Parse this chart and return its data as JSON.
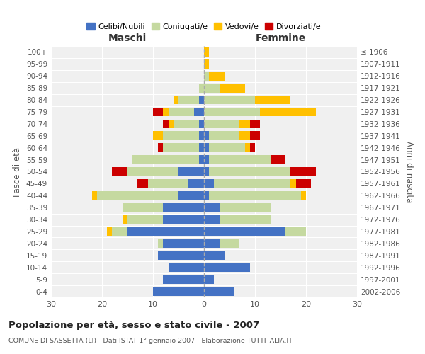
{
  "age_groups": [
    "0-4",
    "5-9",
    "10-14",
    "15-19",
    "20-24",
    "25-29",
    "30-34",
    "35-39",
    "40-44",
    "45-49",
    "50-54",
    "55-59",
    "60-64",
    "65-69",
    "70-74",
    "75-79",
    "80-84",
    "85-89",
    "90-94",
    "95-99",
    "100+"
  ],
  "birth_years": [
    "2002-2006",
    "1997-2001",
    "1992-1996",
    "1987-1991",
    "1982-1986",
    "1977-1981",
    "1972-1976",
    "1967-1971",
    "1962-1966",
    "1957-1961",
    "1952-1956",
    "1947-1951",
    "1942-1946",
    "1937-1941",
    "1932-1936",
    "1927-1931",
    "1922-1926",
    "1917-1921",
    "1912-1916",
    "1907-1911",
    "≤ 1906"
  ],
  "male": {
    "celibe": [
      10,
      8,
      7,
      9,
      8,
      15,
      8,
      8,
      5,
      3,
      5,
      1,
      1,
      1,
      1,
      2,
      1,
      0,
      0,
      0,
      0
    ],
    "coniugato": [
      0,
      0,
      0,
      0,
      1,
      3,
      7,
      8,
      16,
      8,
      10,
      13,
      7,
      7,
      5,
      5,
      4,
      1,
      0,
      0,
      0
    ],
    "vedovo": [
      0,
      0,
      0,
      0,
      0,
      1,
      1,
      0,
      1,
      0,
      0,
      0,
      0,
      2,
      1,
      1,
      1,
      0,
      0,
      0,
      0
    ],
    "divorziato": [
      0,
      0,
      0,
      0,
      0,
      0,
      0,
      0,
      0,
      2,
      3,
      0,
      1,
      0,
      1,
      2,
      0,
      0,
      0,
      0,
      0
    ]
  },
  "female": {
    "nubile": [
      6,
      2,
      9,
      4,
      3,
      16,
      3,
      3,
      1,
      2,
      1,
      1,
      1,
      1,
      0,
      0,
      0,
      0,
      0,
      0,
      0
    ],
    "coniugata": [
      0,
      0,
      0,
      0,
      4,
      4,
      10,
      10,
      18,
      15,
      16,
      12,
      7,
      6,
      7,
      11,
      10,
      3,
      1,
      0,
      0
    ],
    "vedova": [
      0,
      0,
      0,
      0,
      0,
      0,
      0,
      0,
      1,
      1,
      0,
      0,
      1,
      2,
      2,
      11,
      7,
      5,
      3,
      1,
      1
    ],
    "divorziata": [
      0,
      0,
      0,
      0,
      0,
      0,
      0,
      0,
      0,
      3,
      5,
      3,
      1,
      2,
      2,
      0,
      0,
      0,
      0,
      0,
      0
    ]
  },
  "colors": {
    "celibe": "#4472c4",
    "coniugato": "#c5d9a0",
    "vedovo": "#ffc000",
    "divorziato": "#cc0000"
  },
  "xlim": 30,
  "title": "Popolazione per età, sesso e stato civile - 2007",
  "subtitle": "COMUNE DI SASSETTA (LI) - Dati ISTAT 1° gennaio 2007 - Elaborazione TUTTITALIA.IT",
  "xlabel_left": "Maschi",
  "xlabel_right": "Femmine",
  "ylabel_left": "Fasce di età",
  "ylabel_right": "Anni di nascita",
  "legend_labels": [
    "Celibi/Nubili",
    "Coniugati/e",
    "Vedovi/e",
    "Divorziati/e"
  ],
  "bg_color": "#ffffff",
  "plot_bg_color": "#f0f0f0",
  "grid_color": "#ffffff",
  "bar_height": 0.75
}
